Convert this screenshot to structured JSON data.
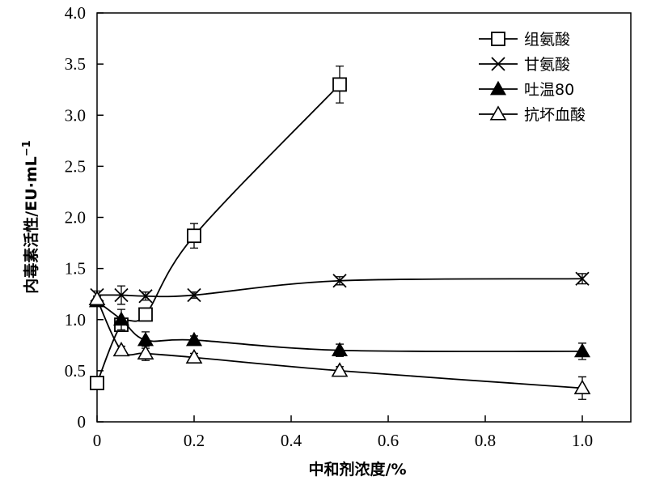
{
  "chart_data": {
    "type": "line",
    "title": "",
    "xlabel": "中和剂浓度/%",
    "ylabel": "内毒素活性/EU·mL",
    "ylabel_sup": "−1",
    "xlim": [
      0,
      1.1
    ],
    "ylim": [
      0,
      4.0
    ],
    "x_ticks": [
      0,
      0.2,
      0.4,
      0.6,
      0.8,
      1.0
    ],
    "x_tick_labels": [
      "0",
      "0.2",
      "0.4",
      "0.6",
      "0.8",
      "1.0"
    ],
    "y_ticks": [
      0,
      0.5,
      1.0,
      1.5,
      2.0,
      2.5,
      3.0,
      3.5,
      4.0
    ],
    "y_tick_labels": [
      "0",
      "0.5",
      "1.0",
      "1.5",
      "2.0",
      "2.5",
      "3.0",
      "3.5",
      "4.0"
    ],
    "grid": false,
    "legend_position": "top-right",
    "series": [
      {
        "name": "组氨酸",
        "marker": "open-square",
        "x": [
          0,
          0.05,
          0.1,
          0.2,
          0.5
        ],
        "y": [
          0.38,
          0.95,
          1.05,
          1.82,
          3.3
        ],
        "err": [
          0.04,
          0.05,
          0.05,
          0.12,
          0.18
        ]
      },
      {
        "name": "甘氨酸",
        "marker": "cross",
        "x": [
          0,
          0.05,
          0.1,
          0.2,
          0.5,
          1.0
        ],
        "y": [
          1.24,
          1.24,
          1.23,
          1.24,
          1.38,
          1.4
        ],
        "err": [
          0.04,
          0.09,
          0.04,
          0.03,
          0.04,
          0.05
        ]
      },
      {
        "name": "吐温80",
        "marker": "filled-triangle",
        "x": [
          0,
          0.05,
          0.1,
          0.2,
          0.5,
          1.0
        ],
        "y": [
          1.18,
          1.0,
          0.8,
          0.8,
          0.7,
          0.69
        ],
        "err": [
          0.05,
          0.1,
          0.08,
          0.04,
          0.06,
          0.08
        ]
      },
      {
        "name": "抗坏血酸",
        "marker": "open-triangle",
        "x": [
          0,
          0.05,
          0.1,
          0.2,
          0.5,
          1.0
        ],
        "y": [
          1.2,
          0.7,
          0.67,
          0.63,
          0.5,
          0.33
        ],
        "err": [
          0.03,
          0.04,
          0.07,
          0.04,
          0.04,
          0.11
        ]
      }
    ]
  }
}
